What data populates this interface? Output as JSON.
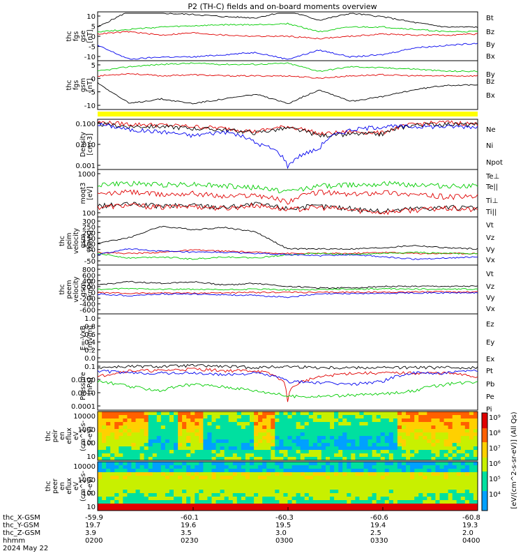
{
  "title": "P2 (TH-C) fields and on-board moments overview",
  "date_label": "2024 May 22",
  "colors": {
    "black": "#000000",
    "red": "#e00000",
    "green": "#00cc00",
    "blue": "#0000ee",
    "yellow": "#ffff00"
  },
  "footer": {
    "row_labels": [
      "thc_X-GSM",
      "thc_Y-GSM",
      "thc_Z-GSM",
      "hhmm"
    ],
    "columns": [
      [
        "-59.9",
        "19.7",
        "3.9",
        "0200"
      ],
      [
        "-60.1",
        "19.6",
        "3.5",
        "0230"
      ],
      [
        "-60.3",
        "19.5",
        "3.0",
        "0300"
      ],
      [
        "-60.6",
        "19.4",
        "2.5",
        "0330"
      ],
      [
        "-60.8",
        "19.3",
        "2.0",
        "0400"
      ]
    ]
  },
  "colorbar": {
    "label": "[eV/(cm^2-s-sr-eV)] (All Qs)",
    "ticks": [
      "10⁹",
      "10⁸",
      "10⁷",
      "10⁶",
      "10⁵",
      "10⁴"
    ]
  },
  "panels": [
    {
      "id": "fgs_gse",
      "ylabel": [
        "thc",
        "fgs",
        "gse",
        "[nT]"
      ],
      "ticks": [
        "10",
        "5",
        "0",
        "-5",
        "-10"
      ],
      "legend": [
        {
          "t": "Bt",
          "c": "black"
        },
        {
          "t": "Bz",
          "c": "red"
        },
        {
          "t": "By",
          "c": "green"
        },
        {
          "t": "Bx",
          "c": "blue"
        }
      ]
    },
    {
      "id": "fgs_gsm",
      "ylabel": [
        "thc",
        "fgs",
        "gsm",
        "[nT]"
      ],
      "ticks": [
        "5",
        "0",
        "-5",
        "-10"
      ],
      "legend": [
        {
          "t": "By",
          "c": "green"
        },
        {
          "t": "Bz",
          "c": "red"
        },
        {
          "t": "Bx",
          "c": "black"
        }
      ]
    },
    {
      "id": "density",
      "ylabel": [
        "Density",
        "[cm-3]"
      ],
      "ticks": [
        "0.100",
        "0.010",
        "0.001"
      ],
      "legend": [
        {
          "t": "Ne",
          "c": "red"
        },
        {
          "t": "Ni",
          "c": "black"
        },
        {
          "t": "Npot",
          "c": "blue"
        }
      ]
    },
    {
      "id": "temp",
      "ylabel": [
        "moqt3",
        "[eV]"
      ],
      "ticks": [
        "1000",
        "100"
      ],
      "legend": [
        {
          "t": "Te⊥",
          "c": "red"
        },
        {
          "t": "Te||",
          "c": "black"
        },
        {
          "t": "Ti⊥",
          "c": "red"
        },
        {
          "t": "Ti||",
          "c": "green"
        }
      ]
    },
    {
      "id": "peim_vel",
      "ylabel": [
        "thc",
        "peim",
        "velocity",
        "gsm",
        "[km/s]"
      ],
      "ticks": [
        "300",
        "250",
        "200",
        "150",
        "100",
        "50",
        "0",
        "-50"
      ],
      "legend": [
        {
          "t": "Vt",
          "c": "black"
        },
        {
          "t": "Vz",
          "c": "red"
        },
        {
          "t": "Vy",
          "c": "green"
        },
        {
          "t": "Vx",
          "c": "blue"
        }
      ]
    },
    {
      "id": "peem_vel",
      "ylabel": [
        "thc",
        "peem",
        "velocity",
        "gsm",
        "[km/s]"
      ],
      "ticks": [
        "800",
        "600",
        "400",
        "200",
        "0",
        "-200",
        "-400",
        "-600"
      ],
      "legend": [
        {
          "t": "Vt",
          "c": "black"
        },
        {
          "t": "Vz",
          "c": "red"
        },
        {
          "t": "Vy",
          "c": "green"
        },
        {
          "t": "Vx",
          "c": "blue"
        }
      ]
    },
    {
      "id": "efield",
      "ylabel": [
        "E=-VxB",
        "[mV/m]"
      ],
      "ticks": [
        "1.0",
        "0.8",
        "0.6",
        "0.4",
        "0.2",
        "0.0"
      ],
      "legend": [
        {
          "t": "Ez",
          "c": "red"
        },
        {
          "t": "Ey",
          "c": "green"
        },
        {
          "t": "Ex",
          "c": "blue"
        }
      ]
    },
    {
      "id": "pressure",
      "ylabel": [
        "Pressure",
        "[nPa]"
      ],
      "ticks": [
        "0.1",
        "0.0100",
        "0.0010",
        "0.0001"
      ],
      "legend": [
        {
          "t": "Pt",
          "c": "black"
        },
        {
          "t": "Pb",
          "c": "red"
        },
        {
          "t": "Pe",
          "c": "green"
        },
        {
          "t": "Pi",
          "c": "blue"
        }
      ]
    },
    {
      "id": "peir_spec",
      "ylabel": [
        "thc",
        "peir",
        "en",
        "eflux",
        "eV",
        "(cm^2-s-",
        "sr-eV)"
      ],
      "ticks": [
        "10000",
        "1000",
        "100",
        "10"
      ],
      "legend": []
    },
    {
      "id": "peer_spec",
      "ylabel": [
        "thc",
        "peer",
        "en",
        "eflux",
        "eV",
        "(cm^2-s-",
        "sr-eV)"
      ],
      "ticks": [
        "10000",
        "1000",
        "100",
        "10"
      ],
      "legend": []
    }
  ],
  "chart_data": [
    {
      "type": "line",
      "panel": "fgs_gse",
      "ylim": [
        -10,
        10
      ],
      "x": [
        0,
        10,
        20,
        30,
        40,
        50,
        60,
        70,
        80,
        90,
        100,
        110,
        120
      ],
      "series": [
        {
          "name": "Bt",
          "color": "black",
          "values": [
            4,
            11,
            10,
            9.5,
            8.5,
            8,
            11,
            7,
            10,
            8.5,
            6,
            4,
            4
          ]
        },
        {
          "name": "Bz",
          "color": "red",
          "values": [
            1,
            2,
            0.5,
            1.5,
            0.5,
            0,
            0,
            -1,
            0,
            1,
            0.5,
            0.5,
            1
          ]
        },
        {
          "name": "By",
          "color": "green",
          "values": [
            2,
            3,
            4,
            4.5,
            5,
            5,
            5.5,
            2,
            4,
            4,
            3,
            2,
            2
          ]
        },
        {
          "name": "Bx",
          "color": "blue",
          "values": [
            -4,
            -10,
            -9,
            -9,
            -8,
            -7,
            -10,
            -6,
            -9,
            -8,
            -5,
            -4,
            -3
          ]
        }
      ]
    },
    {
      "type": "line",
      "panel": "fgs_gsm",
      "ylim": [
        -14,
        6
      ],
      "x": [
        0,
        10,
        20,
        30,
        40,
        50,
        60,
        70,
        80,
        90,
        100,
        110,
        120
      ],
      "series": [
        {
          "name": "By",
          "color": "green",
          "values": [
            2,
            4,
            5,
            5.5,
            5,
            5,
            5.5,
            2,
            4,
            3.5,
            3,
            2,
            2
          ]
        },
        {
          "name": "Bz",
          "color": "red",
          "values": [
            0,
            1,
            0,
            0.5,
            0,
            0,
            0,
            -1,
            0,
            0.5,
            0,
            0,
            0
          ]
        },
        {
          "name": "Bx",
          "color": "black",
          "values": [
            -3,
            -12,
            -10,
            -12,
            -10,
            -8,
            -12,
            -6,
            -11,
            -9,
            -6,
            -4,
            -4
          ]
        }
      ]
    },
    {
      "type": "line",
      "panel": "density",
      "ylim": [
        0.001,
        0.3
      ],
      "scale": "log",
      "x": [
        0,
        10,
        20,
        30,
        40,
        50,
        60,
        70,
        80,
        90,
        100,
        110,
        120
      ],
      "series": [
        {
          "name": "Ne",
          "color": "red",
          "values": [
            0.25,
            0.2,
            0.18,
            0.15,
            0.12,
            0.08,
            0.15,
            0.06,
            0.08,
            0.07,
            0.2,
            0.25,
            0.2
          ]
        },
        {
          "name": "Ni",
          "color": "black",
          "values": [
            0.2,
            0.15,
            0.15,
            0.12,
            0.1,
            0.07,
            0.12,
            0.05,
            0.06,
            0.06,
            0.18,
            0.2,
            0.18
          ]
        },
        {
          "name": "Npot",
          "color": "blue",
          "values": [
            0.2,
            0.1,
            0.08,
            0.05,
            0.08,
            0.02,
            0.001,
            0.01,
            0.1,
            0.15,
            0.15,
            0.15,
            0.15
          ]
        }
      ]
    },
    {
      "type": "line",
      "panel": "temp",
      "ylim": [
        40,
        3000
      ],
      "scale": "log",
      "x": [
        0,
        10,
        20,
        30,
        40,
        50,
        60,
        70,
        80,
        90,
        100,
        110,
        120
      ],
      "series": [
        {
          "name": "Te⊥",
          "color": "red",
          "values": [
            300,
            400,
            300,
            350,
            250,
            300,
            150,
            400,
            300,
            400,
            300,
            250,
            250
          ]
        },
        {
          "name": "Te||",
          "color": "black",
          "values": [
            100,
            120,
            100,
            110,
            90,
            120,
            80,
            100,
            80,
            60,
            80,
            90,
            80
          ]
        },
        {
          "name": "Ti⊥",
          "color": "red",
          "values": [
            90,
            110,
            90,
            100,
            80,
            110,
            70,
            90,
            70,
            55,
            70,
            80,
            70
          ]
        },
        {
          "name": "Ti||",
          "color": "green",
          "values": [
            800,
            900,
            800,
            850,
            700,
            600,
            400,
            700,
            800,
            900,
            800,
            700,
            700
          ]
        }
      ]
    },
    {
      "type": "line",
      "panel": "peim_vel",
      "ylim": [
        -80,
        320
      ],
      "x": [
        0,
        10,
        20,
        30,
        40,
        50,
        60,
        70,
        80,
        90,
        100,
        110,
        120
      ],
      "series": [
        {
          "name": "Vt",
          "color": "black",
          "values": [
            100,
            150,
            250,
            220,
            240,
            200,
            50,
            50,
            50,
            60,
            80,
            60,
            50
          ]
        },
        {
          "name": "Vz",
          "color": "red",
          "values": [
            20,
            10,
            20,
            40,
            30,
            20,
            10,
            10,
            10,
            20,
            10,
            10,
            10
          ]
        },
        {
          "name": "Vy",
          "color": "green",
          "values": [
            10,
            -30,
            -20,
            -40,
            -20,
            -30,
            0,
            10,
            0,
            10,
            20,
            10,
            10
          ]
        },
        {
          "name": "Vx",
          "color": "blue",
          "values": [
            0,
            50,
            30,
            20,
            20,
            10,
            0,
            -10,
            0,
            -20,
            -40,
            -30,
            -20
          ]
        }
      ]
    },
    {
      "type": "line",
      "panel": "peem_vel",
      "ylim": [
        -700,
        800
      ],
      "x": [
        0,
        10,
        20,
        30,
        40,
        50,
        60,
        70,
        80,
        90,
        100,
        110,
        120
      ],
      "series": [
        {
          "name": "Vt",
          "color": "black",
          "values": [
            200,
            300,
            250,
            300,
            200,
            250,
            150,
            100,
            100,
            150,
            150,
            150,
            150
          ]
        },
        {
          "name": "Vz",
          "color": "red",
          "values": [
            -50,
            -80,
            -60,
            -70,
            -60,
            -50,
            -40,
            -50,
            -40,
            -40,
            -30,
            -30,
            -30
          ]
        },
        {
          "name": "Vy",
          "color": "green",
          "values": [
            50,
            80,
            60,
            50,
            40,
            60,
            40,
            50,
            60,
            70,
            60,
            60,
            60
          ]
        },
        {
          "name": "Vx",
          "color": "blue",
          "values": [
            -100,
            -150,
            -100,
            -100,
            -120,
            -150,
            -200,
            -100,
            -80,
            -80,
            -60,
            -60,
            -60
          ]
        }
      ]
    },
    {
      "type": "line",
      "panel": "pressure",
      "ylim": [
        5e-05,
        0.1
      ],
      "scale": "log",
      "x": [
        0,
        10,
        20,
        30,
        40,
        50,
        60,
        70,
        80,
        90,
        100,
        110,
        120
      ],
      "series": [
        {
          "name": "Pt",
          "color": "black",
          "values": [
            0.05,
            0.06,
            0.06,
            0.07,
            0.06,
            0.05,
            0.06,
            0.05,
            0.05,
            0.05,
            0.05,
            0.05,
            0.05
          ]
        },
        {
          "name": "Pb",
          "color": "red",
          "values": [
            0.01,
            0.03,
            0.03,
            0.04,
            0.03,
            0.03,
            0.0002,
            0.01,
            0.02,
            0.02,
            0.02,
            0.02,
            0.01
          ]
        },
        {
          "name": "Pe",
          "color": "green",
          "values": [
            0.005,
            0.002,
            0.001,
            0.003,
            0.002,
            0.001,
            0.0004,
            0.0004,
            0.0005,
            0.0006,
            0.001,
            0.003,
            0.005
          ]
        },
        {
          "name": "Pi",
          "color": "blue",
          "values": [
            0.03,
            0.02,
            0.02,
            0.02,
            0.015,
            0.02,
            0.005,
            0.004,
            0.003,
            0.005,
            0.02,
            0.02,
            0.03
          ]
        }
      ]
    }
  ]
}
